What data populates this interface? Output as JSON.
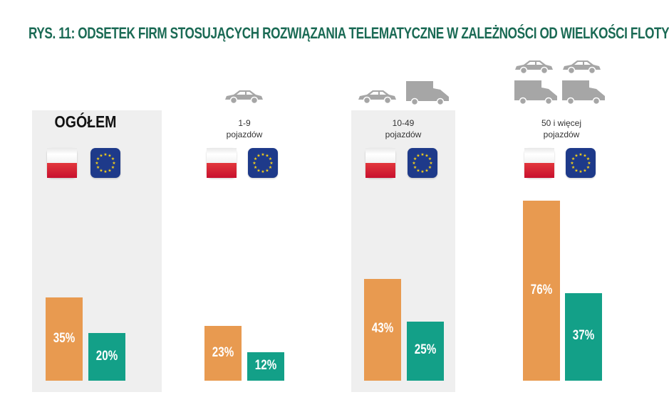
{
  "title": "RYS. 11: ODSETEK FIRM STOSUJĄCYCH ROZWIĄZANIA TELEMATYCZNE W ZALEŻNOŚCI OD WIELKOŚCI FLOTY",
  "colors": {
    "poland": "#e89a50",
    "eu": "#13a088",
    "title": "#1a6a54",
    "panel": "#efefef"
  },
  "chart_data": {
    "type": "bar",
    "title": "RYS. 11: ODSETEK FIRM STOSUJĄCYCH ROZWIĄZANIA TELEMATYCZNE W ZALEŻNOŚCI OD WIELKOŚCI FLOTY",
    "categories": [
      "OGÓŁEM",
      "1-9 pojazdów",
      "10-49 pojazdów",
      "50 i więcej pojazdów"
    ],
    "series": [
      {
        "icon": "poland-flag-icon",
        "color": "#e89a50",
        "values": [
          35,
          23,
          43,
          76
        ],
        "labels": [
          "35%",
          "23%",
          "43%",
          "76%"
        ]
      },
      {
        "icon": "eu-flag-icon",
        "color": "#13a088",
        "values": [
          20,
          12,
          25,
          37
        ],
        "labels": [
          "20%",
          "12%",
          "25%",
          "37%"
        ]
      }
    ],
    "unit": "%",
    "ylim": [
      0,
      100
    ],
    "grid": false,
    "legend": "flags above each group"
  },
  "groups": [
    {
      "line1": "OGÓŁEM",
      "line2": "",
      "icons": []
    },
    {
      "line1": "1-9",
      "line2": "pojazdów",
      "icons": [
        "car-icon"
      ]
    },
    {
      "line1": "10-49",
      "line2": "pojazdów",
      "icons": [
        "car-icon",
        "van-icon"
      ]
    },
    {
      "line1": "50 i więcej",
      "line2": "pojazdów",
      "icons": [
        "car-icon",
        "car-icon",
        "van-icon",
        "van-icon"
      ]
    }
  ]
}
